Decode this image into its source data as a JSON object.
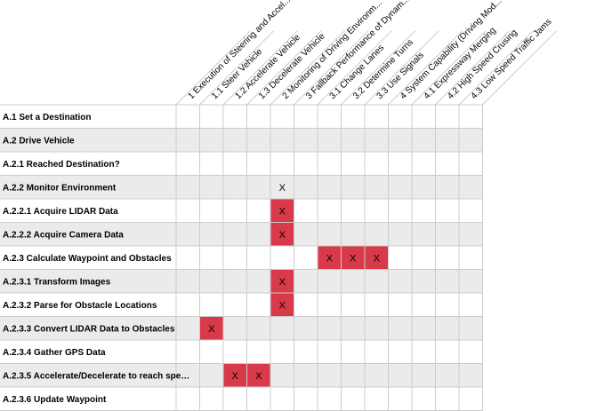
{
  "columns": [
    "1 Execution of Steering and Accel...",
    "1.1 Steer Vehicle",
    "1.2 Accelerate Vehicle",
    "1.3 Decelerate Vehicle",
    "2 Monitoring of Driving Environm...",
    "3 Fallback Performance of Dynam...",
    "3.1 Change Lanes",
    "3.2 Determine Turns",
    "3.3 Use Signals",
    "4 System Capability (Driving Mod...",
    "4.1 Expressway Merging",
    "4.2 High Speed Crusing",
    "4.3 Low Speed Traffic Jams"
  ],
  "rows": [
    {
      "label": "A.1 Set a Destination",
      "marks": []
    },
    {
      "label": "A.2 Drive Vehicle",
      "marks": []
    },
    {
      "label": "A.2.1 Reached Destination?",
      "marks": []
    },
    {
      "label": "A.2.2 Monitor Environment",
      "marks": [
        {
          "col": 4,
          "highlight": false
        }
      ]
    },
    {
      "label": "A.2.2.1 Acquire LIDAR Data",
      "marks": [
        {
          "col": 4,
          "highlight": true
        }
      ]
    },
    {
      "label": "A.2.2.2 Acquire Camera Data",
      "marks": [
        {
          "col": 4,
          "highlight": true
        }
      ]
    },
    {
      "label": "A.2.3 Calculate Waypoint and Obstacles",
      "marks": [
        {
          "col": 6,
          "highlight": true
        },
        {
          "col": 7,
          "highlight": true
        },
        {
          "col": 8,
          "highlight": true
        }
      ]
    },
    {
      "label": "A.2.3.1 Transform Images",
      "marks": [
        {
          "col": 4,
          "highlight": true
        }
      ]
    },
    {
      "label": "A.2.3.2 Parse for Obstacle Locations",
      "marks": [
        {
          "col": 4,
          "highlight": true
        }
      ]
    },
    {
      "label": "A.2.3.3 Convert LIDAR Data to Obstacles",
      "marks": [
        {
          "col": 1,
          "highlight": true
        }
      ]
    },
    {
      "label": "A.2.3.4 Gather GPS Data",
      "marks": []
    },
    {
      "label": "A.2.3.5 Accelerate/Decelerate to reach spe…",
      "marks": [
        {
          "col": 2,
          "highlight": true
        },
        {
          "col": 3,
          "highlight": true
        }
      ]
    },
    {
      "label": "A.2.3.6 Update Waypoint",
      "marks": []
    }
  ],
  "mark_symbol": "X",
  "colors": {
    "highlight": "#d93a4a",
    "stripe": "#ebebeb",
    "grid": "#cccccc",
    "text": "#000000"
  }
}
